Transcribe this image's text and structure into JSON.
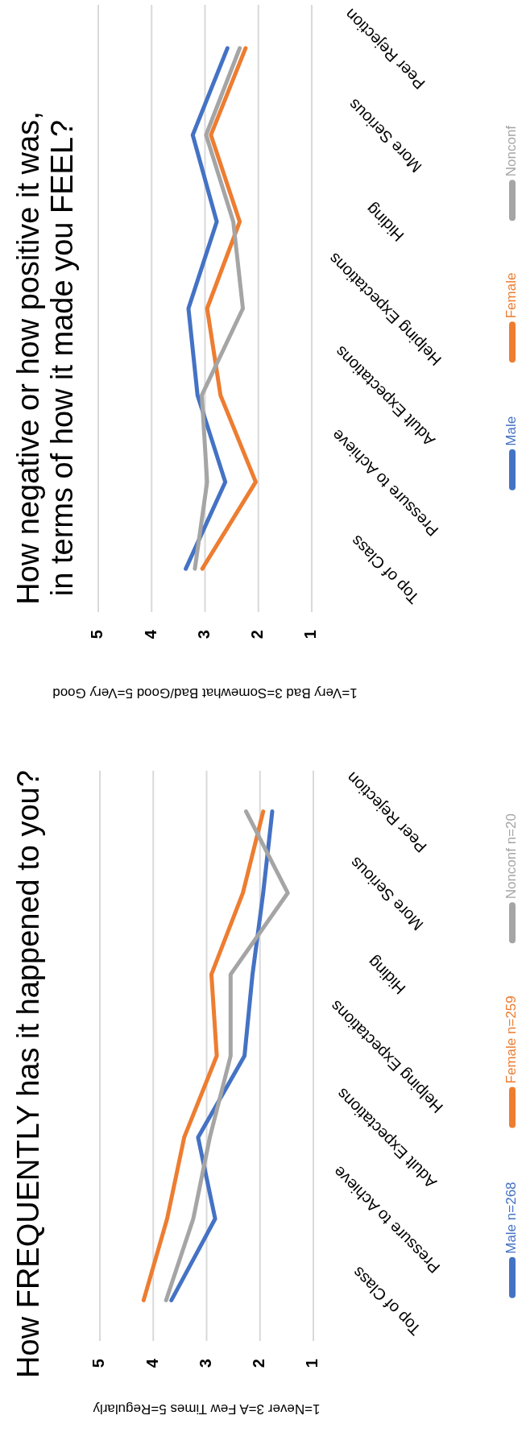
{
  "chart_data": [
    {
      "type": "line",
      "orientation": "horizontal",
      "title": "How negative or how positive it was, in terms of how it made you FEEL?",
      "xlabel": "1=Very Bad 3=Somewhat Bad/Good 5=Very Good",
      "categories": [
        "Peer Rejection",
        "More Serious",
        "Hiding",
        "Helping Expectations",
        "Adult Expectations",
        "Pressure to Achieve",
        "Top of Class"
      ],
      "xlim": [
        5,
        1
      ],
      "xticks": [
        5,
        4,
        3,
        2,
        1
      ],
      "grid": "x",
      "legend": "right",
      "series": [
        {
          "name": "Male",
          "color": "#4472c4",
          "values": [
            2.58,
            3.23,
            2.78,
            3.31,
            3.14,
            2.62,
            3.36
          ]
        },
        {
          "name": "Female",
          "color": "#ed7d31",
          "values": [
            2.24,
            2.89,
            2.35,
            2.96,
            2.71,
            2.05,
            3.05
          ]
        },
        {
          "name": "Nonconf",
          "color": "#a5a5a5",
          "values": [
            2.35,
            2.98,
            2.47,
            2.29,
            3.06,
            2.96,
            3.19
          ]
        }
      ]
    },
    {
      "type": "line",
      "orientation": "horizontal",
      "title": "How FREQUENTLY has it happened to you?",
      "xlabel": "1=Never 3=A Few Times 5=Regularly",
      "categories": [
        "Peer Rejection",
        "More Serious",
        "Hiding",
        "Helping Expectations",
        "Adult Expectations",
        "Pressure to Achieve",
        "Top of Class"
      ],
      "xlim": [
        5,
        1
      ],
      "xticks": [
        5,
        4,
        3,
        2,
        1
      ],
      "grid": "x",
      "legend": "right",
      "series": [
        {
          "name": "Male n=268",
          "color": "#4472c4",
          "values": [
            1.77,
            1.94,
            2.14,
            2.29,
            3.16,
            2.84,
            3.66
          ]
        },
        {
          "name": "Female n=259",
          "color": "#ed7d31",
          "values": [
            1.94,
            2.32,
            2.91,
            2.81,
            3.42,
            3.74,
            4.18
          ]
        },
        {
          "name": "Nonconf n=20",
          "color": "#a5a5a5",
          "values": [
            2.26,
            1.48,
            2.55,
            2.55,
            2.94,
            3.25,
            3.76
          ]
        }
      ]
    }
  ]
}
